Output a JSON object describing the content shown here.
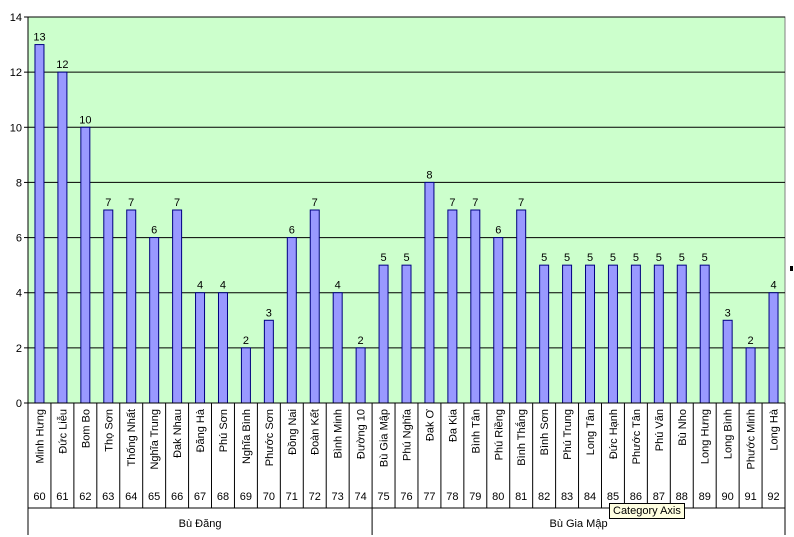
{
  "chart_data": {
    "type": "bar",
    "title": "",
    "xlabel": "",
    "ylabel": "",
    "ylim": [
      0,
      14
    ],
    "yticks": [
      0,
      2,
      4,
      6,
      8,
      10,
      12,
      14
    ],
    "grid": true,
    "legend": "none",
    "colors": {
      "bar_fill": "#9999ff",
      "bar_stroke": "#000080",
      "plot_bg": "#ccffcc"
    },
    "categories": [
      {
        "name": "Minh Hưng",
        "code": "60",
        "value": 13
      },
      {
        "name": "Đức Liễu",
        "code": "61",
        "value": 12
      },
      {
        "name": "Bom Bo",
        "code": "62",
        "value": 10
      },
      {
        "name": "Thọ Sơn",
        "code": "63",
        "value": 7
      },
      {
        "name": "Thống Nhất",
        "code": "64",
        "value": 7
      },
      {
        "name": "Nghĩa Trung",
        "code": "65",
        "value": 6
      },
      {
        "name": "Đak Nhau",
        "code": "66",
        "value": 7
      },
      {
        "name": "Đăng Hà",
        "code": "67",
        "value": 4
      },
      {
        "name": "Phú Sơn",
        "code": "68",
        "value": 4
      },
      {
        "name": "Nghĩa Bình",
        "code": "69",
        "value": 2
      },
      {
        "name": "Phước Sơn",
        "code": "70",
        "value": 3
      },
      {
        "name": "Đồng Nai",
        "code": "71",
        "value": 6
      },
      {
        "name": "Đoàn Kết",
        "code": "72",
        "value": 7
      },
      {
        "name": "Bình Minh",
        "code": "73",
        "value": 4
      },
      {
        "name": "Đường 10",
        "code": "74",
        "value": 2
      },
      {
        "name": "Bù Gia Mập",
        "code": "75",
        "value": 5
      },
      {
        "name": "Phú Nghĩa",
        "code": "76",
        "value": 5
      },
      {
        "name": "Đak Ơ",
        "code": "77",
        "value": 8
      },
      {
        "name": "Đa Kia",
        "code": "78",
        "value": 7
      },
      {
        "name": "Bình Tân",
        "code": "79",
        "value": 7
      },
      {
        "name": "Phú Riềng",
        "code": "80",
        "value": 6
      },
      {
        "name": "Bình Thắng",
        "code": "81",
        "value": 7
      },
      {
        "name": "Bình Sơn",
        "code": "82",
        "value": 5
      },
      {
        "name": "Phú Trung",
        "code": "83",
        "value": 5
      },
      {
        "name": "Long Tân",
        "code": "84",
        "value": 5
      },
      {
        "name": "Đức Hạnh",
        "code": "85",
        "value": 5
      },
      {
        "name": "Phước Tân",
        "code": "86",
        "value": 5
      },
      {
        "name": "Phú Văn",
        "code": "87",
        "value": 5
      },
      {
        "name": "Bù Nho",
        "code": "88",
        "value": 5
      },
      {
        "name": "Long Hưng",
        "code": "89",
        "value": 5
      },
      {
        "name": "Long Bình",
        "code": "90",
        "value": 3
      },
      {
        "name": "Phước Minh",
        "code": "91",
        "value": 2
      },
      {
        "name": "Long Hà",
        "code": "92",
        "value": 4
      }
    ],
    "groups": [
      {
        "name": "Bù Đăng",
        "count": 15
      },
      {
        "name": "Bù Gia Mập",
        "count": 18
      }
    ]
  },
  "tooltip": {
    "text": "Category Axis"
  }
}
